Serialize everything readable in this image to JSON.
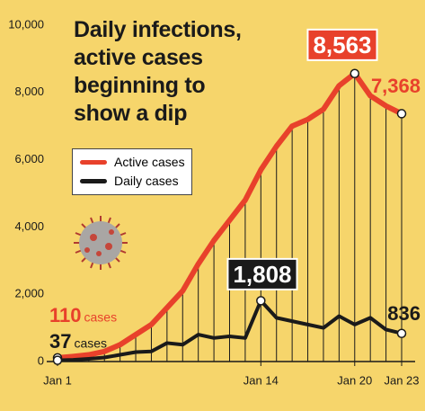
{
  "chart_data": {
    "type": "line",
    "title": "Daily infections, active cases beginning to show a dip",
    "categories": [
      "Jan 1",
      null,
      null,
      null,
      null,
      null,
      null,
      null,
      null,
      null,
      null,
      null,
      null,
      "Jan 14",
      null,
      null,
      null,
      null,
      null,
      "Jan 20",
      null,
      null,
      "Jan 23"
    ],
    "series": [
      {
        "name": "Active cases",
        "color": "#e8412b",
        "values": [
          110,
          150,
          200,
          300,
          500,
          800,
          1100,
          1600,
          2100,
          2900,
          3600,
          4200,
          4800,
          5700,
          6400,
          7000,
          7200,
          7500,
          8200,
          8563,
          7900,
          7600,
          7368
        ],
        "value_labels": [
          "110",
          null,
          null,
          null,
          null,
          null,
          null,
          null,
          null,
          null,
          null,
          null,
          null,
          null,
          null,
          null,
          null,
          null,
          null,
          "8,563",
          null,
          null,
          "7,368"
        ],
        "label_unit": "cases"
      },
      {
        "name": "Daily cases",
        "color": "#1a1a1a",
        "values": [
          37,
          50,
          80,
          120,
          200,
          280,
          300,
          550,
          500,
          800,
          700,
          750,
          700,
          1808,
          1300,
          1200,
          1100,
          1000,
          1350,
          1100,
          1300,
          950,
          836
        ],
        "value_labels": [
          "37",
          null,
          null,
          null,
          null,
          null,
          null,
          null,
          null,
          null,
          null,
          null,
          null,
          "1,808",
          null,
          null,
          null,
          null,
          null,
          null,
          null,
          null,
          "836"
        ],
        "label_unit": "cases"
      }
    ],
    "ylim": [
      0,
      10000
    ],
    "yticks": [
      0,
      {
        "value": 2000,
        "label": "2,000"
      },
      {
        "value": 4000,
        "label": "4,000"
      },
      {
        "value": 6000,
        "label": "6,000"
      },
      {
        "value": 8000,
        "label": "8,000"
      },
      {
        "value": 10000,
        "label": "10,000"
      }
    ],
    "grid": false
  }
}
